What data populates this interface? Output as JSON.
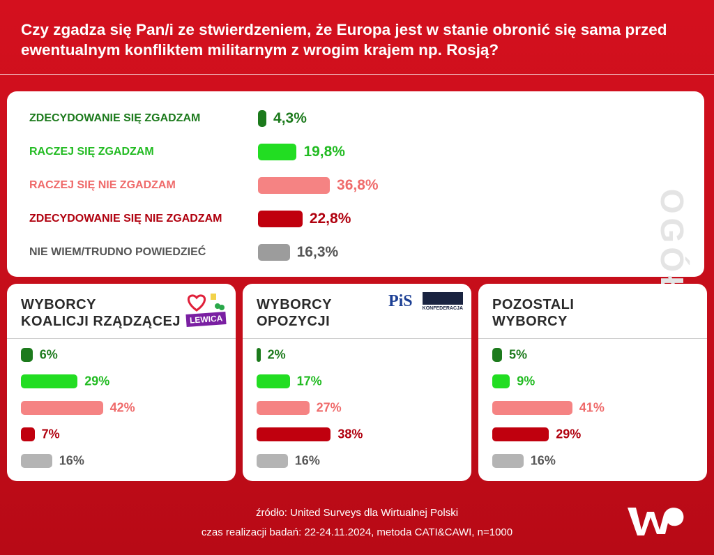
{
  "header": {
    "title": "Czy zgadza się Pan/i ze stwierdzeniem, że Europa jest w stanie obronić się sama przed ewentualnym konfliktem militarnym z wrogim krajem np. Rosją?"
  },
  "chart_data": [
    {
      "type": "bar",
      "orientation": "horizontal",
      "title": "OGÓŁEM",
      "categories": [
        "ZDECYDOWANIE SIĘ ZGADZAM",
        "RACZEJ SIĘ ZGADZAM",
        "RACZEJ SIĘ NIE ZGADZAM",
        "ZDECYDOWANIE SIĘ NIE ZGADZAM",
        "NIE WIEM/TRUDNO POWIEDZIEĆ"
      ],
      "values": [
        4.3,
        19.8,
        36.8,
        22.8,
        16.3
      ],
      "value_labels": [
        "4,3%",
        "19,8%",
        "36,8%",
        "22,8%",
        "16,3%"
      ],
      "colors": [
        "#1c7a1c",
        "#22dd22",
        "#f58383",
        "#c0000e",
        "#9c9c9c"
      ],
      "label_colors": [
        "#1c7a1c",
        "#22bb22",
        "#ef6a6a",
        "#b0000e",
        "#555555"
      ]
    },
    {
      "type": "bar",
      "orientation": "horizontal",
      "title": [
        "WYBORCY",
        "KOALICJI RZĄDZĄCEJ"
      ],
      "logos": [
        "LEWICA"
      ],
      "values": [
        6,
        29,
        42,
        7,
        16
      ],
      "value_labels": [
        "6%",
        "29%",
        "42%",
        "7%",
        "16%"
      ],
      "colors": [
        "#1c7a1c",
        "#22dd22",
        "#f58383",
        "#c0000e",
        "#b4b4b4"
      ],
      "label_colors": [
        "#1c7a1c",
        "#22bb22",
        "#ef6a6a",
        "#b0000e",
        "#555555"
      ]
    },
    {
      "type": "bar",
      "orientation": "horizontal",
      "title": [
        "WYBORCY",
        "OPOZYCJI"
      ],
      "logos": [
        "PiS",
        "KONFEDERACJA"
      ],
      "values": [
        2,
        17,
        27,
        38,
        16
      ],
      "value_labels": [
        "2%",
        "17%",
        "27%",
        "38%",
        "16%"
      ],
      "colors": [
        "#1c7a1c",
        "#22dd22",
        "#f58383",
        "#c0000e",
        "#b4b4b4"
      ],
      "label_colors": [
        "#1c7a1c",
        "#22bb22",
        "#ef6a6a",
        "#b0000e",
        "#555555"
      ]
    },
    {
      "type": "bar",
      "orientation": "horizontal",
      "title": [
        "POZOSTALI",
        "WYBORCY"
      ],
      "values": [
        5,
        9,
        41,
        29,
        16
      ],
      "value_labels": [
        "5%",
        "9%",
        "41%",
        "29%",
        "16%"
      ],
      "colors": [
        "#1c7a1c",
        "#22dd22",
        "#f58383",
        "#c0000e",
        "#b4b4b4"
      ],
      "label_colors": [
        "#1c7a1c",
        "#22bb22",
        "#ef6a6a",
        "#b0000e",
        "#555555"
      ]
    }
  ],
  "footer": {
    "source": "źródło: United Surveys dla Wirtualnej Polski",
    "method": "czas realizacji badań: 22-24.11.2024, metoda CATI&CAWI, n=1000"
  }
}
